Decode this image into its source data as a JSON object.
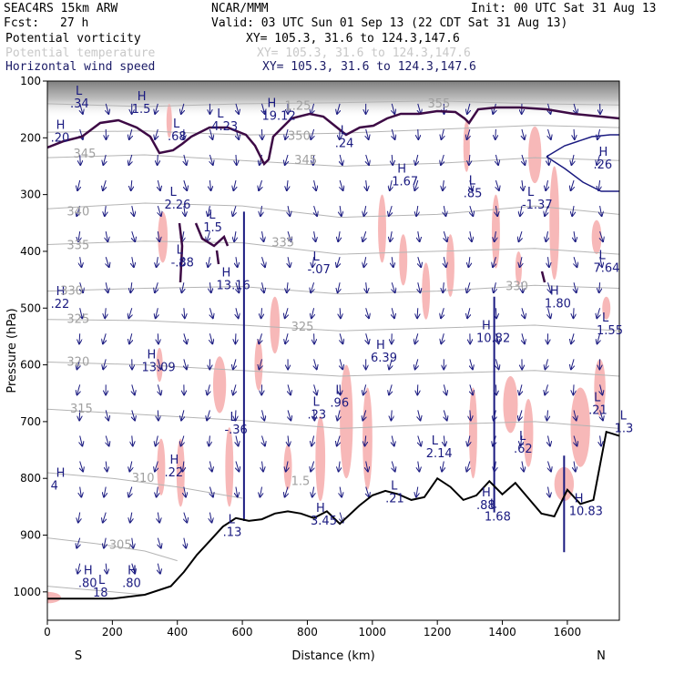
{
  "header": {
    "model": "SEAC4RS 15km ARW",
    "org": "NCAR/MMM",
    "init": "Init: 00 UTC Sat 31 Aug 13",
    "fcst_label": "Fcst:",
    "fcst_value": "27 h",
    "valid": "Valid: 03 UTC Sun 01 Sep 13 (22 CDT Sat 31 Aug 13)"
  },
  "fields": [
    {
      "label": "Potential vorticity",
      "xy": "XY= 105.3, 31.6 to 124.3,147.6"
    },
    {
      "label": "Potential temperature",
      "xy": "XY= 105.3, 31.6 to 124.3,147.6"
    },
    {
      "label": "Horizontal wind speed",
      "xy": "XY= 105.3, 31.6 to 124.3,147.6"
    }
  ],
  "colors": {
    "pv_contour": "#3d0a45",
    "theta_contour": "#b4b4b4",
    "wind_vector": "#1a1a80",
    "pv_shade": "#f7b8b8",
    "terrain": "#000000"
  },
  "chart_data": {
    "type": "line",
    "title": "",
    "xlabel": "Distance (km)",
    "ylabel": "Pressure (hPa)",
    "xlim": [
      0,
      1760
    ],
    "ylim": [
      1050,
      100
    ],
    "x_ticks": [
      0,
      200,
      400,
      600,
      800,
      1000,
      1200,
      1400,
      1600
    ],
    "y_ticks": [
      100,
      200,
      300,
      400,
      500,
      600,
      700,
      800,
      900,
      1000
    ],
    "end_labels": {
      "left": "S",
      "right": "N"
    },
    "terrain_surface": {
      "x": [
        0,
        100,
        200,
        300,
        380,
        420,
        460,
        500,
        540,
        580,
        620,
        660,
        700,
        740,
        780,
        820,
        860,
        900,
        960,
        1000,
        1040,
        1080,
        1120,
        1160,
        1200,
        1240,
        1280,
        1320,
        1360,
        1400,
        1440,
        1480,
        1520,
        1560,
        1600,
        1640,
        1680,
        1720,
        1760
      ],
      "p": [
        1012,
        1012,
        1012,
        1005,
        990,
        965,
        935,
        910,
        885,
        870,
        875,
        872,
        862,
        858,
        862,
        870,
        858,
        880,
        848,
        830,
        822,
        828,
        838,
        833,
        800,
        815,
        838,
        830,
        805,
        828,
        808,
        835,
        862,
        867,
        820,
        845,
        838,
        718,
        725
      ]
    },
    "theta_isentropes": [
      {
        "theta": 355,
        "x": [
          0,
          300,
          600,
          900,
          1200,
          1500,
          1760
        ],
        "p": [
          140,
          145,
          140,
          138,
          135,
          140,
          142
        ]
      },
      {
        "theta": 350,
        "x": [
          0,
          300,
          600,
          900,
          1200,
          1500,
          1760
        ],
        "p": [
          190,
          188,
          195,
          192,
          185,
          178,
          182
        ]
      },
      {
        "theta": 345,
        "x": [
          0,
          300,
          600,
          900,
          1200,
          1500,
          1760
        ],
        "p": [
          235,
          230,
          240,
          250,
          245,
          235,
          240
        ]
      },
      {
        "theta": 340,
        "x": [
          0,
          300,
          600,
          900,
          1200,
          1500,
          1760
        ],
        "p": [
          325,
          315,
          320,
          340,
          335,
          320,
          335
        ]
      },
      {
        "theta": 335,
        "x": [
          0,
          300,
          600,
          900,
          1200,
          1500,
          1760
        ],
        "p": [
          388,
          382,
          385,
          405,
          400,
          395,
          405
        ]
      },
      {
        "theta": 330,
        "x": [
          0,
          300,
          600,
          900,
          1200,
          1500,
          1760
        ],
        "p": [
          470,
          465,
          462,
          475,
          470,
          460,
          465
        ]
      },
      {
        "theta": 325,
        "x": [
          0,
          300,
          600,
          900,
          1200,
          1500,
          1760
        ],
        "p": [
          520,
          522,
          530,
          540,
          535,
          530,
          540
        ]
      },
      {
        "theta": 320,
        "x": [
          0,
          300,
          600,
          900,
          1200,
          1500,
          1760
        ],
        "p": [
          595,
          600,
          610,
          620,
          615,
          610,
          620
        ]
      },
      {
        "theta": 315,
        "x": [
          0,
          300,
          600,
          900,
          1200,
          1500,
          1760
        ],
        "p": [
          678,
          688,
          698,
          712,
          705,
          700,
          712
        ]
      },
      {
        "theta": 310,
        "x": [
          0,
          200,
          400,
          600
        ],
        "p": [
          790,
          800,
          815,
          835
        ]
      },
      {
        "theta": 305,
        "x": [
          0,
          150,
          300,
          400
        ],
        "p": [
          905,
          915,
          928,
          945
        ]
      },
      {
        "theta": 300,
        "x": [
          0,
          100,
          200,
          300
        ],
        "p": [
          990,
          995,
          1000,
          1005
        ]
      }
    ],
    "theta_labels": [
      {
        "text": "355",
        "x": 1170,
        "p": 140
      },
      {
        "text": "350",
        "x": 740,
        "p": 197
      },
      {
        "text": "345",
        "x": 80,
        "p": 228
      },
      {
        "text": "345",
        "x": 760,
        "p": 240
      },
      {
        "text": "340",
        "x": 60,
        "p": 330
      },
      {
        "text": "335",
        "x": 60,
        "p": 390
      },
      {
        "text": "335",
        "x": 690,
        "p": 385
      },
      {
        "text": "330",
        "x": 40,
        "p": 470
      },
      {
        "text": "330",
        "x": 1410,
        "p": 462
      },
      {
        "text": "325",
        "x": 60,
        "p": 520
      },
      {
        "text": "325",
        "x": 750,
        "p": 533
      },
      {
        "text": "320",
        "x": 60,
        "p": 595
      },
      {
        "text": "315",
        "x": 70,
        "p": 678
      },
      {
        "text": "310",
        "x": 260,
        "p": 800
      },
      {
        "text": "305",
        "x": 190,
        "p": 918
      },
      {
        "text": "1.25",
        "x": 730,
        "p": 144
      },
      {
        "text": "1.5",
        "x": 750,
        "p": 805
      }
    ],
    "pv_extrema": [
      {
        "type": "H",
        "value": "1.5",
        "x": 260,
        "p": 150
      },
      {
        "type": "L",
        "value": ".34",
        "x": 70,
        "p": 140
      },
      {
        "type": "H",
        "value": ".20",
        "x": 10,
        "p": 200
      },
      {
        "type": "L",
        "value": ".68",
        "x": 370,
        "p": 198
      },
      {
        "type": "L",
        "value": "4.23",
        "x": 505,
        "p": 180
      },
      {
        "type": "H",
        "value": "19.12",
        "x": 660,
        "p": 162
      },
      {
        "type": "L",
        "value": ".24",
        "x": 885,
        "p": 210
      },
      {
        "type": "H",
        "value": "1.67",
        "x": 1060,
        "p": 277
      },
      {
        "type": "L",
        "value": ".85",
        "x": 1280,
        "p": 298
      },
      {
        "type": "L",
        "value": "-1.37",
        "x": 1460,
        "p": 318
      },
      {
        "type": "H",
        "value": ".26",
        "x": 1680,
        "p": 248
      },
      {
        "type": "L",
        "value": "2.26",
        "x": 360,
        "p": 318
      },
      {
        "type": "L",
        "value": "1.5",
        "x": 480,
        "p": 358
      },
      {
        "type": "L",
        "value": "-.88",
        "x": 380,
        "p": 420
      },
      {
        "type": "H",
        "value": "13.16",
        "x": 520,
        "p": 460
      },
      {
        "type": "L",
        "value": "-.07",
        "x": 800,
        "p": 432
      },
      {
        "type": "H",
        "value": "1.80",
        "x": 1530,
        "p": 492
      },
      {
        "type": "L",
        "value": "7.64",
        "x": 1680,
        "p": 430
      },
      {
        "type": "H",
        "value": ".22",
        "x": 10,
        "p": 493
      },
      {
        "type": "L",
        "value": "1.55",
        "x": 1690,
        "p": 540
      },
      {
        "type": "H",
        "value": "13.09",
        "x": 290,
        "p": 605
      },
      {
        "type": "H",
        "value": "6.39",
        "x": 995,
        "p": 588
      },
      {
        "type": "H",
        "value": "10.82",
        "x": 1320,
        "p": 553
      },
      {
        "type": "L",
        "value": ".96",
        "x": 870,
        "p": 667
      },
      {
        "type": "L",
        "value": ".23",
        "x": 800,
        "p": 688
      },
      {
        "type": "L",
        "value": "-.36",
        "x": 545,
        "p": 715
      },
      {
        "type": "L",
        "value": "2.14",
        "x": 1165,
        "p": 756
      },
      {
        "type": "L",
        "value": ".21",
        "x": 1665,
        "p": 680
      },
      {
        "type": "L",
        "value": "1.3",
        "x": 1745,
        "p": 712
      },
      {
        "type": "L",
        "value": ".62",
        "x": 1435,
        "p": 748
      },
      {
        "type": "H",
        "value": ".22",
        "x": 360,
        "p": 790
      },
      {
        "type": "L",
        "value": ".21",
        "x": 1040,
        "p": 836
      },
      {
        "type": "H",
        "value": "4",
        "x": 10,
        "p": 813
      },
      {
        "type": "H",
        "value": ".88",
        "x": 1320,
        "p": 848
      },
      {
        "type": "L",
        "value": "1.68",
        "x": 1345,
        "p": 868
      },
      {
        "type": "H",
        "value": "10.83",
        "x": 1605,
        "p": 858
      },
      {
        "type": "H",
        "value": "3.45",
        "x": 810,
        "p": 875
      },
      {
        "type": "L",
        "value": ".13",
        "x": 540,
        "p": 895
      },
      {
        "type": "H",
        "value": ".80",
        "x": 95,
        "p": 985
      },
      {
        "type": "H",
        "value": ".80",
        "x": 230,
        "p": 985
      },
      {
        "type": "L",
        "value": "18",
        "x": 140,
        "p": 1002
      }
    ],
    "pv_shading": [
      {
        "x": 375,
        "p": 140,
        "w": 15,
        "h": 60
      },
      {
        "x": 355,
        "p": 330,
        "w": 30,
        "h": 90
      },
      {
        "x": 345,
        "p": 570,
        "w": 20,
        "h": 60
      },
      {
        "x": 350,
        "p": 730,
        "w": 25,
        "h": 100
      },
      {
        "x": 410,
        "p": 730,
        "w": 25,
        "h": 120
      },
      {
        "x": 530,
        "p": 585,
        "w": 40,
        "h": 100
      },
      {
        "x": 560,
        "p": 710,
        "w": 25,
        "h": 140
      },
      {
        "x": 650,
        "p": 555,
        "w": 25,
        "h": 90
      },
      {
        "x": 700,
        "p": 480,
        "w": 30,
        "h": 100
      },
      {
        "x": 740,
        "p": 740,
        "w": 25,
        "h": 80
      },
      {
        "x": 840,
        "p": 690,
        "w": 30,
        "h": 150
      },
      {
        "x": 920,
        "p": 600,
        "w": 40,
        "h": 200
      },
      {
        "x": 985,
        "p": 640,
        "w": 30,
        "h": 180
      },
      {
        "x": 1030,
        "p": 300,
        "w": 25,
        "h": 120
      },
      {
        "x": 1095,
        "p": 370,
        "w": 25,
        "h": 90
      },
      {
        "x": 1165,
        "p": 420,
        "w": 25,
        "h": 100
      },
      {
        "x": 1240,
        "p": 370,
        "w": 25,
        "h": 110
      },
      {
        "x": 1290,
        "p": 170,
        "w": 20,
        "h": 90
      },
      {
        "x": 1310,
        "p": 640,
        "w": 25,
        "h": 160
      },
      {
        "x": 1380,
        "p": 300,
        "w": 25,
        "h": 130
      },
      {
        "x": 1425,
        "p": 620,
        "w": 45,
        "h": 100
      },
      {
        "x": 1480,
        "p": 660,
        "w": 30,
        "h": 120
      },
      {
        "x": 1500,
        "p": 180,
        "w": 40,
        "h": 100
      },
      {
        "x": 1560,
        "p": 250,
        "w": 30,
        "h": 200
      },
      {
        "x": 1640,
        "p": 640,
        "w": 60,
        "h": 140
      },
      {
        "x": 1690,
        "p": 345,
        "w": 30,
        "h": 60
      },
      {
        "x": 1700,
        "p": 590,
        "w": 35,
        "h": 100
      },
      {
        "x": 1720,
        "p": 480,
        "w": 25,
        "h": 40
      },
      {
        "x": 1590,
        "p": 780,
        "w": 60,
        "h": 60
      },
      {
        "x": 2,
        "p": 1000,
        "w": 80,
        "h": 20
      },
      {
        "x": 1450,
        "p": 400,
        "w": 20,
        "h": 60
      }
    ],
    "wind_jets": [
      {
        "x": 605,
        "p_top": 330,
        "p_bottom": 875
      },
      {
        "x": 1375,
        "p_top": 480,
        "p_bottom": 860
      },
      {
        "x": 1590,
        "p_top": 760,
        "p_bottom": 930
      }
    ]
  }
}
